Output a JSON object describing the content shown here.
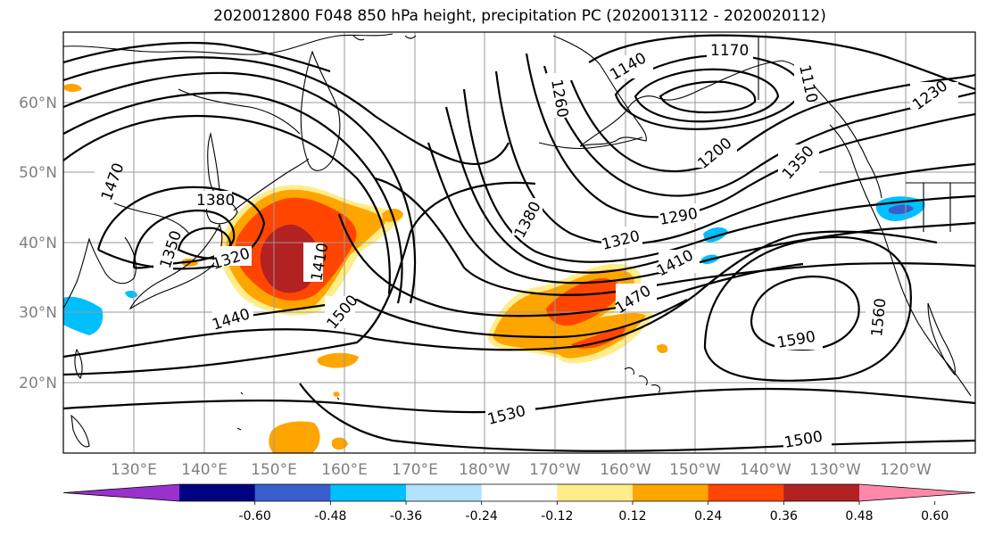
{
  "title": "2020012800 F048 850 hPa height, precipitation PC (2020013112 - 2020020112)",
  "lat_labels": [
    "60°N",
    "50°N",
    "40°N",
    "30°N",
    "20°N"
  ],
  "lon_labels": [
    "130°E",
    "140°E",
    "150°E",
    "160°E",
    "170°E",
    "180°W",
    "170°W",
    "160°W",
    "150°W",
    "140°W",
    "130°W",
    "120°W"
  ],
  "contour_labels": [
    "1380",
    "1470",
    "1350",
    "1320",
    "1410",
    "1440",
    "1500",
    "1380",
    "1320",
    "1290",
    "1410",
    "1470",
    "1260",
    "1140",
    "1170",
    "1110",
    "1230",
    "1200",
    "1350",
    "1590",
    "1560",
    "1530",
    "1500"
  ],
  "colorbar": {
    "ticks": [
      "-0.60",
      "-0.48",
      "-0.36",
      "-0.24",
      "-0.12",
      "0.12",
      "0.24",
      "0.36",
      "0.48",
      "0.60"
    ],
    "colors": [
      "#9932cc",
      "#000080",
      "#3a5fcd",
      "#00bfff",
      "#b2e2ff",
      "#ffffff",
      "#ffec8b",
      "#ffa500",
      "#ff4500",
      "#b22222",
      "#ff88aa"
    ]
  }
}
